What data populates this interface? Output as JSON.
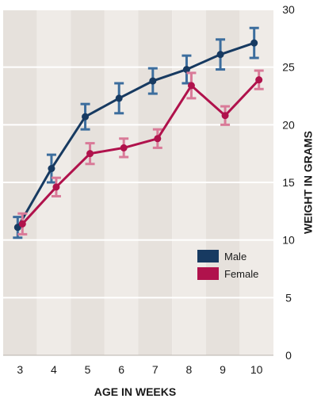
{
  "chart_data": {
    "type": "line",
    "x": [
      3,
      4,
      5,
      6,
      7,
      8,
      9,
      10
    ],
    "xlabel": "AGE IN WEEKS",
    "ylabel": "WEIGHT IN GRAMS",
    "ylim": [
      0,
      30
    ],
    "yticks": [
      0,
      5,
      10,
      15,
      20,
      25,
      30
    ],
    "grid": "horizontal",
    "legend_position": "right-middle",
    "series": [
      {
        "name": "Male",
        "color": "#173a61",
        "values": [
          11.1,
          16.2,
          20.7,
          22.3,
          23.8,
          24.8,
          26.1,
          27.1
        ],
        "errors": [
          0.9,
          1.2,
          1.1,
          1.3,
          1.1,
          1.2,
          1.3,
          1.3
        ]
      },
      {
        "name": "Female",
        "color": "#b0124c",
        "values": [
          11.4,
          14.6,
          17.5,
          18.0,
          18.8,
          23.4,
          20.8,
          23.9
        ],
        "errors": [
          0.9,
          0.8,
          0.9,
          0.8,
          0.8,
          1.1,
          0.8,
          0.8
        ]
      }
    ]
  }
}
